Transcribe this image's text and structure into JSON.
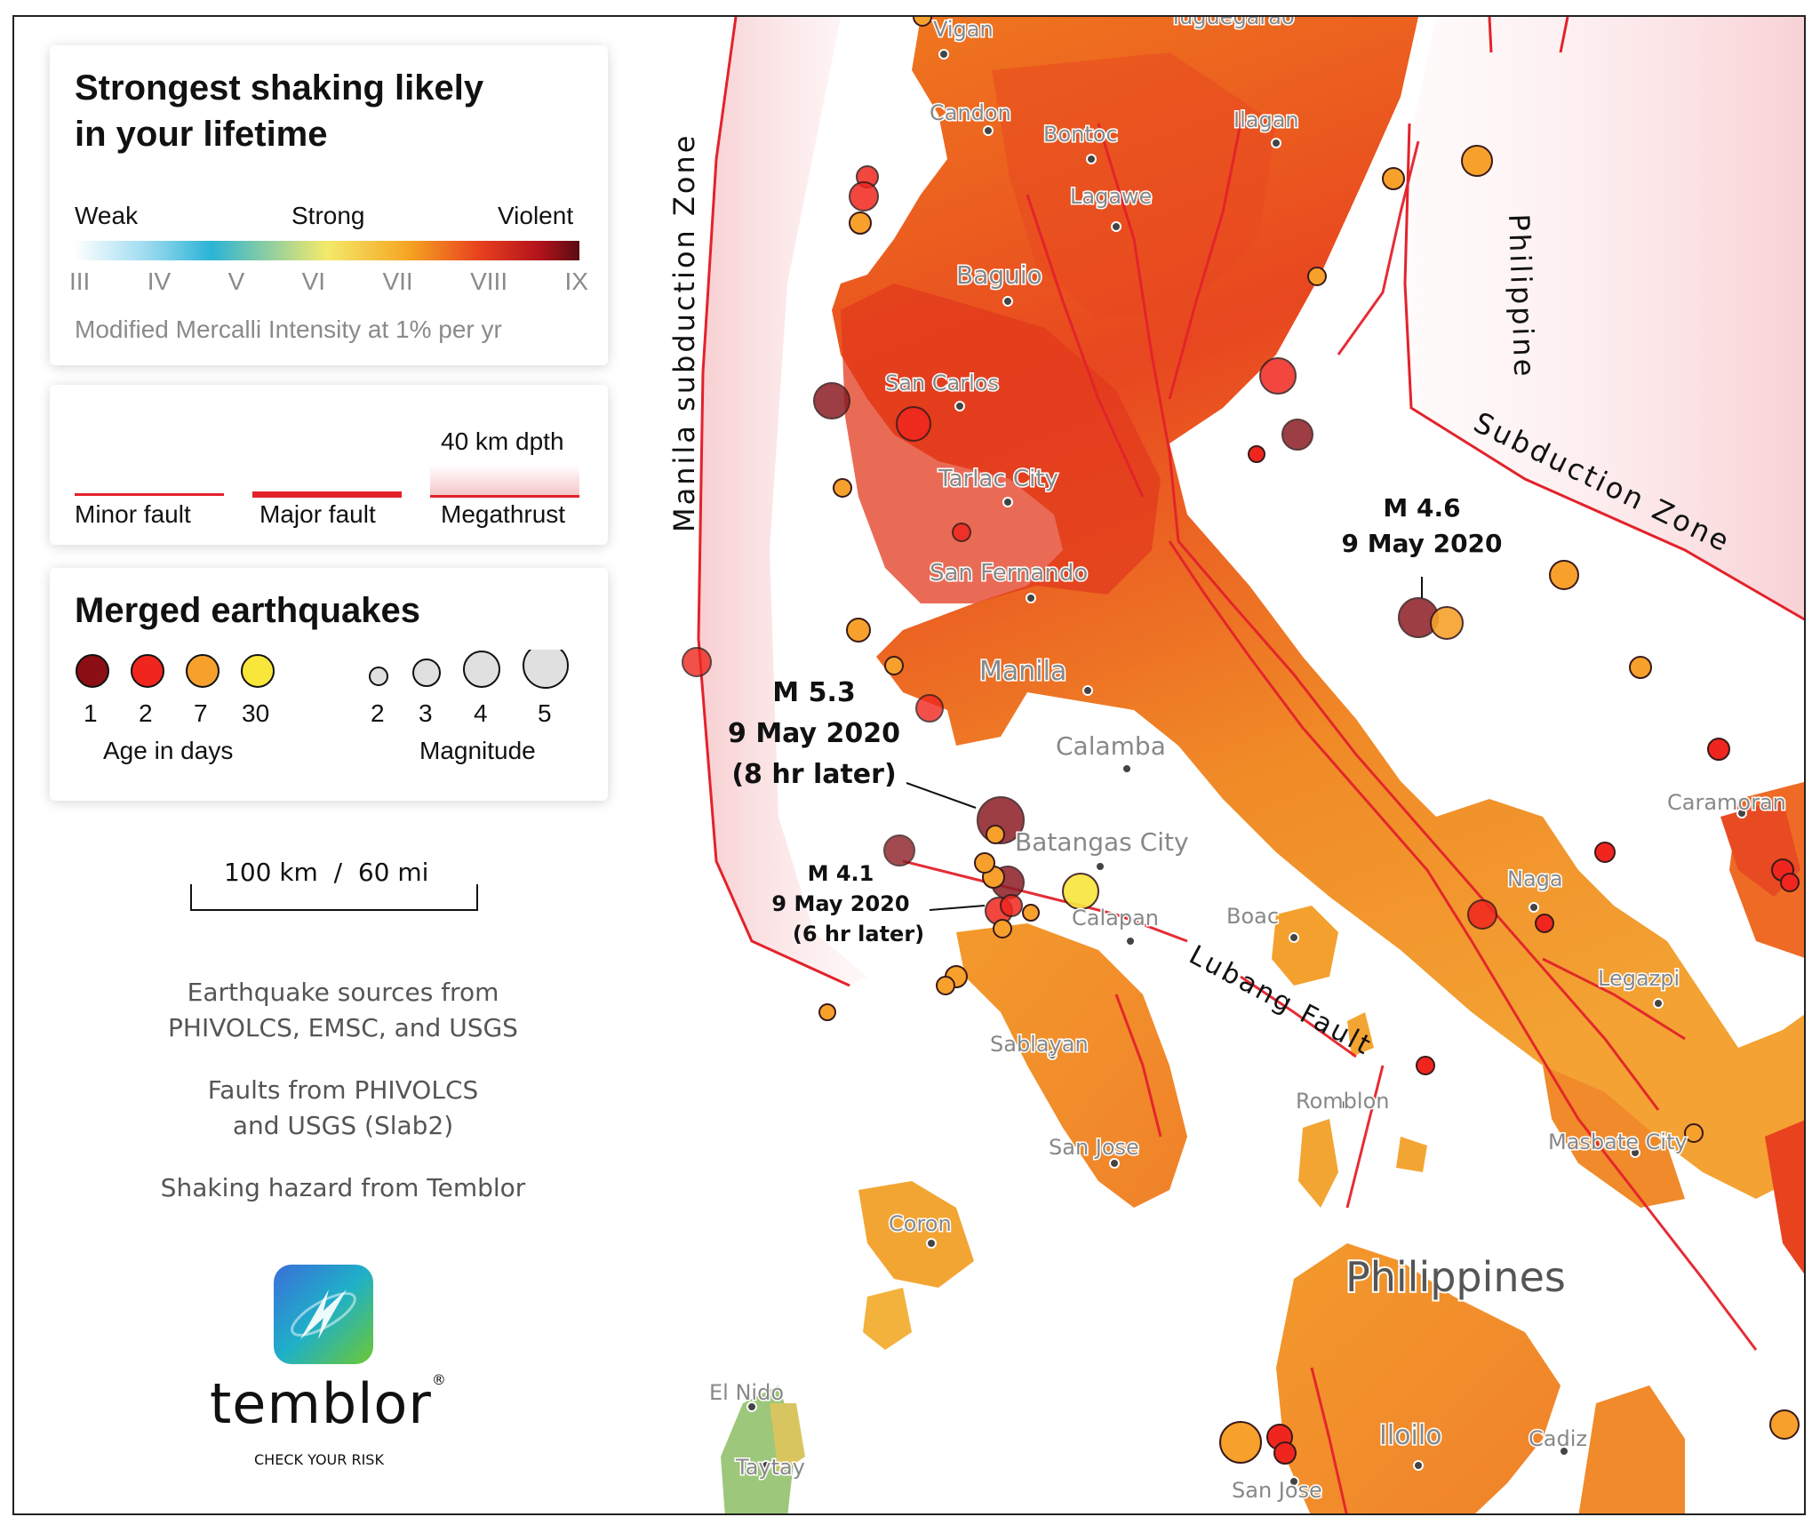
{
  "legend_intensity": {
    "title_line1": "Strongest shaking likely",
    "title_line2": "in your lifetime",
    "label_weak": "Weak",
    "label_strong": "Strong",
    "label_violent": "Violent",
    "scale": [
      "III",
      "IV",
      "V",
      "VI",
      "VII",
      "VIII",
      "IX"
    ],
    "caption": "Modified Mercalli Intensity at 1% per yr",
    "gradient_colors": [
      "#ffffff",
      "#9fdcf0",
      "#2bb3d6",
      "#f4e96a",
      "#f5a623",
      "#e8421e",
      "#b3131b",
      "#5a0c12"
    ]
  },
  "legend_faults": {
    "minor_label": "Minor fault",
    "major_label": "Major fault",
    "megathrust_label": "Megathrust",
    "depth_label": "40 km dpth",
    "fault_color": "#e3222b"
  },
  "legend_quakes": {
    "title": "Merged earthquakes",
    "age_items": [
      {
        "label": "1",
        "color": "#8b0f14"
      },
      {
        "label": "2",
        "color": "#f0261e"
      },
      {
        "label": "7",
        "color": "#f7a12c"
      },
      {
        "label": "30",
        "color": "#f8e63a"
      }
    ],
    "age_caption": "Age in days",
    "magnitude_items": [
      "2",
      "3",
      "4",
      "5"
    ],
    "magnitude_caption": "Magnitude"
  },
  "scale_bar": {
    "label": "100 km  /  60 mi"
  },
  "credits": {
    "line1a": "Earthquake sources from",
    "line1b": "PHIVOLCS, EMSC, and USGS",
    "line2a": "Faults from PHIVOLCS",
    "line2b": "and USGS (Slab2)",
    "line3": "Shaking hazard from Temblor"
  },
  "logo": {
    "wordmark": "temblor",
    "tagline": "CHECK YOUR RISK",
    "trademark": "®"
  },
  "map": {
    "country": "Philippines",
    "zones": {
      "manila": "Manila subduction Zone",
      "philippine_a": "Philippine",
      "philippine_b": "Subduction Zone",
      "lubang": "Lubang Fault"
    },
    "cities": {
      "vigan": "Vigan",
      "tuguegarao": "Tuguegarao",
      "candon": "Candon",
      "bontoc": "Bontoc",
      "ilagan": "Ilagan",
      "lagawe": "Lagawe",
      "baguio": "Baguio",
      "san_carlos": "San Carlos",
      "tarlac": "Tarlac City",
      "san_fernando": "San Fernando",
      "manila": "Manila",
      "calamba": "Calamba",
      "batangas": "Batangas City",
      "calapan": "Calapan",
      "boac": "Boac",
      "sablayan": "Sablayan",
      "san_jose_mindoro": "San Jose",
      "romblon": "Romblon",
      "caramoran": "Caramoran",
      "naga": "Naga",
      "legazpi": "Legazpi",
      "masbate": "Masbate City",
      "coron": "Coron",
      "el_nido": "El Nido",
      "taytay": "Taytay",
      "iloilo": "Iloilo",
      "cadiz": "Cadiz",
      "san_jose_panay": "San Jose"
    },
    "annotations": {
      "m53_a": "M 5.3",
      "m53_b": "9 May 2020",
      "m53_c": "(8 hr later)",
      "m41_a": "M 4.1",
      "m41_b": "9 May 2020",
      "m41_c": "(6 hr later)",
      "m46_a": "M 4.6",
      "m46_b": "9 May 2020"
    }
  }
}
